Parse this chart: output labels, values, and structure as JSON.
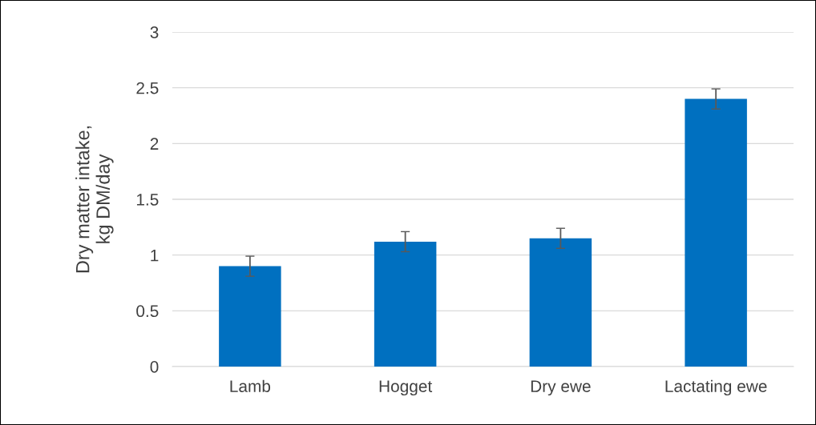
{
  "chart_data": {
    "type": "bar",
    "ylabel": "Dry matter intake,\nkg DM/day",
    "categories": [
      "Lamb",
      "Hogget",
      "Dry ewe",
      "Lactating ewe"
    ],
    "values": [
      0.9,
      1.12,
      1.15,
      2.4
    ],
    "errors": [
      0.09,
      0.09,
      0.09,
      0.09
    ],
    "color": "#0070c0",
    "ylim": [
      0,
      3
    ],
    "yticks": [
      0,
      0.5,
      1,
      1.5,
      2,
      2.5,
      3
    ],
    "grid": "y",
    "legend": false
  }
}
